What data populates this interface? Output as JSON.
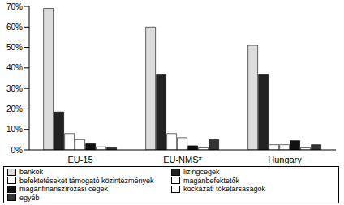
{
  "chart_data": {
    "type": "bar",
    "categories": [
      "EU-15",
      "EU-NMS*",
      "Hungary"
    ],
    "series": [
      {
        "name": "bankok",
        "color": "#dcdcdc",
        "values": [
          69,
          60,
          51
        ]
      },
      {
        "name": "lizingcegek",
        "color": "#222222",
        "values": [
          18.5,
          37,
          37
        ]
      },
      {
        "name": "befektetéseket támogató közintézmények",
        "color": "#ffffff",
        "values": [
          8,
          8,
          2.5
        ]
      },
      {
        "name": "magánbefektetők",
        "color": "#ffffff",
        "values": [
          5,
          6,
          2.5
        ]
      },
      {
        "name": "magánfinanszírozási cégek",
        "color": "#111111",
        "values": [
          3,
          2,
          4.5
        ]
      },
      {
        "name": "kockázati tőketársaságok",
        "color": "#ffffff",
        "values": [
          1.5,
          1,
          1
        ]
      },
      {
        "name": "egyéb",
        "color": "#333333",
        "values": [
          1,
          5,
          2.5
        ]
      }
    ],
    "ylim": [
      0,
      70
    ],
    "yticks": [
      {
        "value": 0,
        "label": "0%"
      },
      {
        "value": 10,
        "label": "10%"
      },
      {
        "value": 20,
        "label": "20%"
      },
      {
        "value": 30,
        "label": "30%"
      },
      {
        "value": 40,
        "label": "40%"
      },
      {
        "value": 50,
        "label": "50%"
      },
      {
        "value": 60,
        "label": "60%"
      },
      {
        "value": 70,
        "label": "70%"
      }
    ],
    "grid": false,
    "legend": "bottom"
  }
}
